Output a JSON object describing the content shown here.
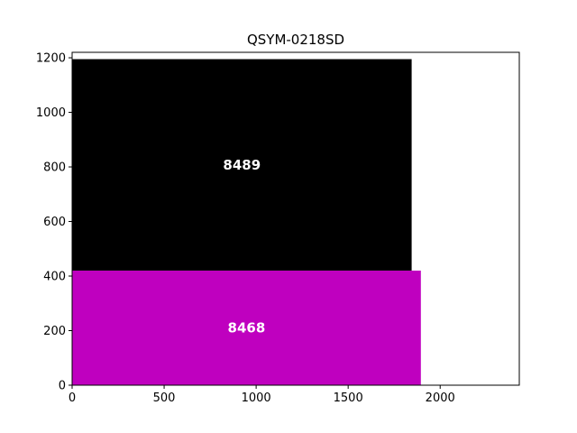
{
  "chart_data": {
    "type": "treemap",
    "title": "QSYM-0218SD",
    "xlim": [
      0,
      2430
    ],
    "ylim": [
      0,
      1220
    ],
    "xticks": [
      0,
      500,
      1000,
      1500,
      2000
    ],
    "yticks": [
      0,
      200,
      400,
      600,
      800,
      1000,
      1200
    ],
    "xlabel": "",
    "ylabel": "",
    "grid": false,
    "rects": [
      {
        "label": "8468",
        "x": 0,
        "y": 0,
        "width": 1895,
        "height": 420,
        "color": "#bf00bf"
      },
      {
        "label": "8489",
        "x": 0,
        "y": 420,
        "width": 1845,
        "height": 775,
        "color": "#000000"
      }
    ]
  }
}
